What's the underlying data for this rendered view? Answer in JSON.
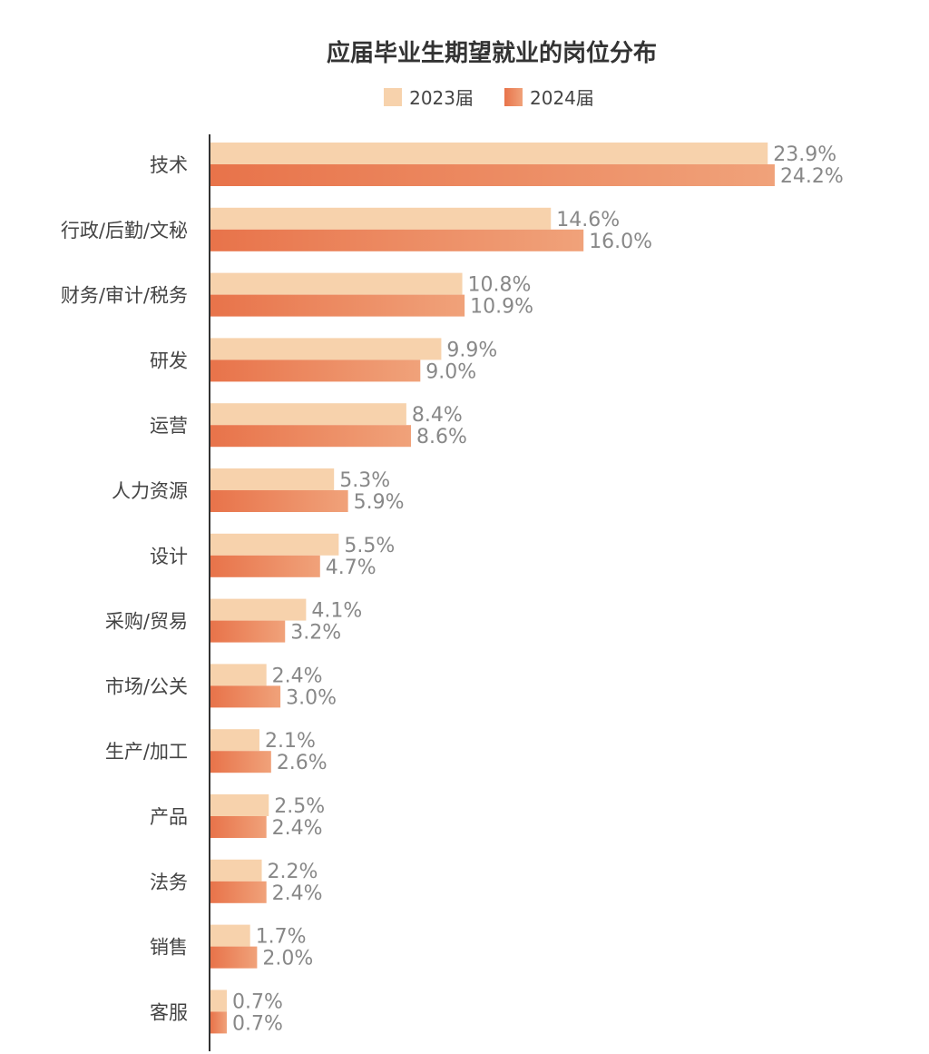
{
  "chart_data": {
    "type": "bar",
    "orientation": "horizontal",
    "title": "应届毕业生期望就业的岗位分布",
    "categories": [
      "技术",
      "行政/后勤/文秘",
      "财务/审计/税务",
      "研发",
      "运营",
      "人力资源",
      "设计",
      "采购/贸易",
      "市场/公关",
      "生产/加工",
      "产品",
      "法务",
      "销售",
      "客服"
    ],
    "series": [
      {
        "name": "2023届",
        "values": [
          23.9,
          14.6,
          10.8,
          9.9,
          8.4,
          5.3,
          5.5,
          4.1,
          2.4,
          2.1,
          2.5,
          2.2,
          1.7,
          0.7
        ],
        "color": "#F7D2AC"
      },
      {
        "name": "2024届",
        "values": [
          24.2,
          16.0,
          10.9,
          9.0,
          8.6,
          5.9,
          4.7,
          3.2,
          3.0,
          2.6,
          2.4,
          2.4,
          2.0,
          0.7
        ],
        "color": "#E8734A",
        "gradient_end": "#F0A27A"
      }
    ],
    "value_labels": [
      [
        "23.9%",
        "14.6%",
        "10.8%",
        "9.9%",
        "8.4%",
        "5.3%",
        "5.5%",
        "4.1%",
        "2.4%",
        "2.1%",
        "2.5%",
        "2.2%",
        "1.7%",
        "0.7%"
      ],
      [
        "24.2%",
        "16.0%",
        "10.9%",
        "9.0%",
        "8.6%",
        "5.9%",
        "4.7%",
        "3.2%",
        "3.0%",
        "2.6%",
        "2.4%",
        "2.4%",
        "2.0%",
        "0.7%"
      ]
    ],
    "xlim": [
      0,
      25
    ],
    "legend_position": "top-center",
    "grid": false
  }
}
